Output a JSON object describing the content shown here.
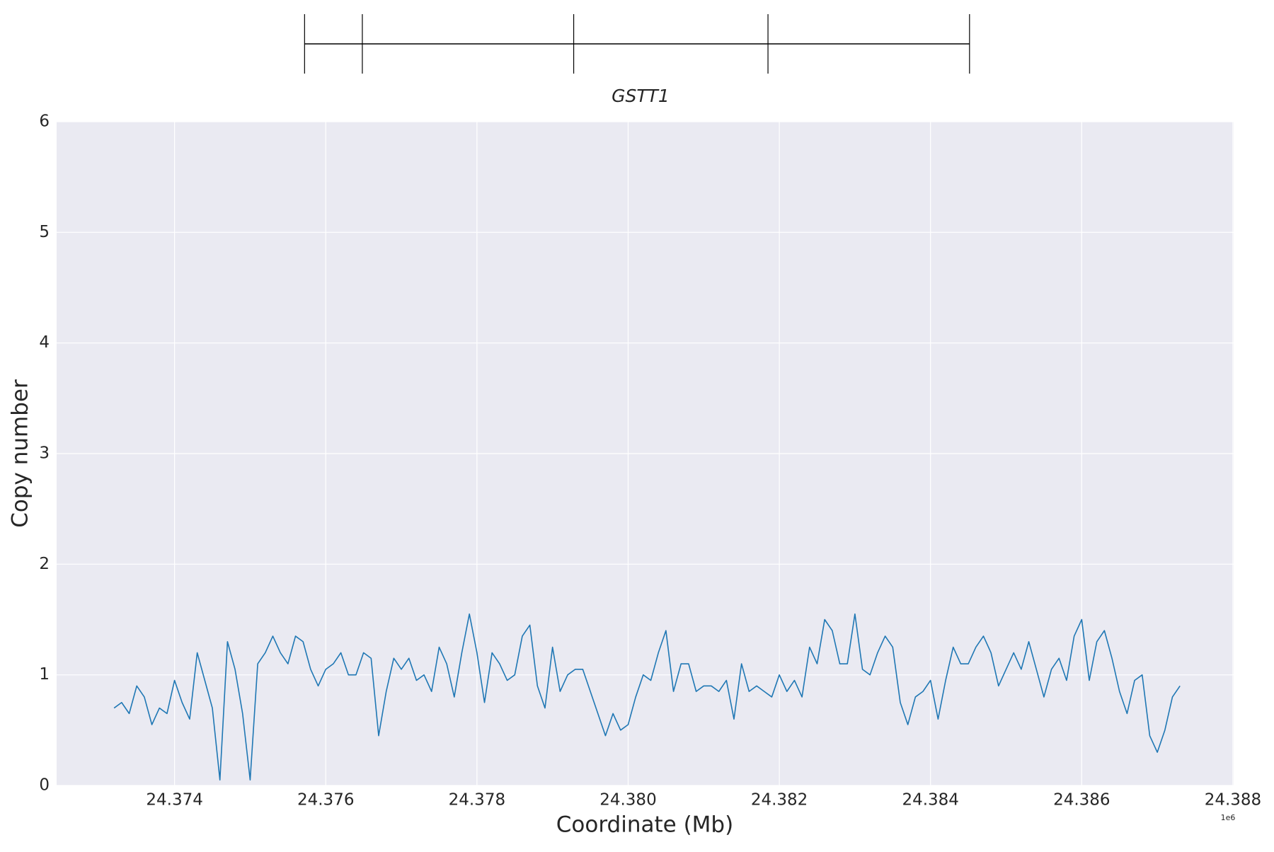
{
  "chart_data": {
    "type": "line",
    "gene_name": "GSTT1",
    "gene_marks": [
      24375720,
      24376484,
      24379280,
      24381850,
      24384516
    ],
    "xlabel": "Coordinate (Mb)",
    "ylabel": "Copy number",
    "x_offset_label": "1e6",
    "xlim": [
      24372440,
      24388010
    ],
    "ylim": [
      0,
      6
    ],
    "xticks": [
      {
        "value": 24374000,
        "label": "24.374"
      },
      {
        "value": 24376000,
        "label": "24.376"
      },
      {
        "value": 24378000,
        "label": "24.378"
      },
      {
        "value": 24380000,
        "label": "24.380"
      },
      {
        "value": 24382000,
        "label": "24.382"
      },
      {
        "value": 24384000,
        "label": "24.384"
      },
      {
        "value": 24386000,
        "label": "24.386"
      },
      {
        "value": 24388000,
        "label": "24.388"
      }
    ],
    "yticks": [
      0,
      1,
      2,
      3,
      4,
      5,
      6
    ],
    "grid": true,
    "x": [
      24373200,
      24373300,
      24373400,
      24373500,
      24373600,
      24373700,
      24373800,
      24373900,
      24374000,
      24374100,
      24374200,
      24374300,
      24374400,
      24374500,
      24374600,
      24374700,
      24374800,
      24374900,
      24375000,
      24375100,
      24375200,
      24375300,
      24375400,
      24375500,
      24375600,
      24375700,
      24375800,
      24375900,
      24376000,
      24376100,
      24376200,
      24376300,
      24376400,
      24376500,
      24376600,
      24376700,
      24376800,
      24376900,
      24377000,
      24377100,
      24377200,
      24377300,
      24377400,
      24377500,
      24377600,
      24377700,
      24377800,
      24377900,
      24378000,
      24378100,
      24378200,
      24378300,
      24378400,
      24378500,
      24378600,
      24378700,
      24378800,
      24378900,
      24379000,
      24379100,
      24379200,
      24379300,
      24379400,
      24379500,
      24379600,
      24379700,
      24379800,
      24379900,
      24380000,
      24380100,
      24380200,
      24380300,
      24380400,
      24380500,
      24380600,
      24380700,
      24380800,
      24380900,
      24381000,
      24381100,
      24381200,
      24381300,
      24381400,
      24381500,
      24381600,
      24381700,
      24381800,
      24381900,
      24382000,
      24382100,
      24382200,
      24382300,
      24382400,
      24382500,
      24382600,
      24382700,
      24382800,
      24382900,
      24383000,
      24383100,
      24383200,
      24383300,
      24383400,
      24383500,
      24383600,
      24383700,
      24383800,
      24383900,
      24384000,
      24384100,
      24384200,
      24384300,
      24384400,
      24384500,
      24384600,
      24384700,
      24384800,
      24384900,
      24385000,
      24385100,
      24385200,
      24385300,
      24385400,
      24385500,
      24385600,
      24385700,
      24385800,
      24385900,
      24386000,
      24386100,
      24386200,
      24386300,
      24386400,
      24386500,
      24386600,
      24386700,
      24386800,
      24386900,
      24387000,
      24387100,
      24387200,
      24387300
    ],
    "series": [
      {
        "color": "#1f77b4",
        "values": [
          0.7,
          0.75,
          0.65,
          0.9,
          0.8,
          0.55,
          0.7,
          0.65,
          0.95,
          0.75,
          0.6,
          1.2,
          0.95,
          0.7,
          0.05,
          1.3,
          1.05,
          0.65,
          0.05,
          1.1,
          1.2,
          1.35,
          1.2,
          1.1,
          1.35,
          1.3,
          1.05,
          0.9,
          1.05,
          1.1,
          1.2,
          1.0,
          1.0,
          1.2,
          1.15,
          0.45,
          0.85,
          1.15,
          1.05,
          1.15,
          0.95,
          1.0,
          0.85,
          1.25,
          1.1,
          0.8,
          1.2,
          1.55,
          1.2,
          0.75,
          1.2,
          1.1,
          0.95,
          1.0,
          1.35,
          1.45,
          0.9,
          0.7,
          1.25,
          0.85,
          1.0,
          1.05,
          1.05,
          0.85,
          0.65,
          0.45,
          0.65,
          0.5,
          0.55,
          0.8,
          1.0,
          0.95,
          1.2,
          1.4,
          0.85,
          1.1,
          1.1,
          0.85,
          0.9,
          0.9,
          0.85,
          0.95,
          0.6,
          1.1,
          0.85,
          0.9,
          0.85,
          0.8,
          1.0,
          0.85,
          0.95,
          0.8,
          1.25,
          1.1,
          1.5,
          1.4,
          1.1,
          1.1,
          1.55,
          1.05,
          1.0,
          1.2,
          1.35,
          1.25,
          0.75,
          0.55,
          0.8,
          0.85,
          0.95,
          0.6,
          0.95,
          1.25,
          1.1,
          1.1,
          1.25,
          1.35,
          1.2,
          0.9,
          1.05,
          1.2,
          1.05,
          1.3,
          1.05,
          0.8,
          1.05,
          1.15,
          0.95,
          1.35,
          1.5,
          0.95,
          1.3,
          1.4,
          1.15,
          0.85,
          0.65,
          0.95,
          1.0,
          0.45,
          0.3,
          0.5,
          0.8,
          0.9
        ]
      }
    ]
  }
}
